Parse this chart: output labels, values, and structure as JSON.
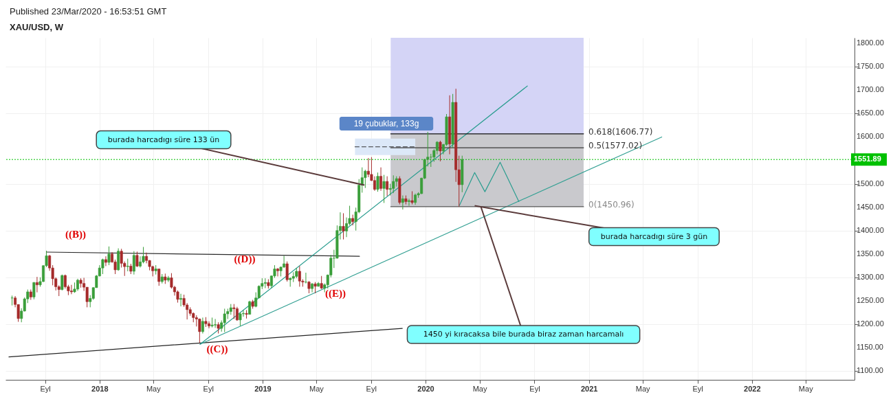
{
  "chart_data": {
    "type": "candlestick",
    "title": "XAU/USD, W",
    "subtitle": "Published 23/Mar/2020 - 16:53:51 GMT",
    "x": [
      "2017-06-19",
      "2017-06-26",
      "2017-07-03",
      "2017-07-10",
      "2017-07-17",
      "2017-07-24",
      "2017-07-31",
      "2017-08-07",
      "2017-08-14",
      "2017-08-21",
      "2017-08-28",
      "2017-09-04",
      "2017-09-11",
      "2017-09-18",
      "2017-09-25",
      "2017-10-02",
      "2017-10-09",
      "2017-10-16",
      "2017-10-23",
      "2017-10-30",
      "2017-11-06",
      "2017-11-13",
      "2017-11-20",
      "2017-11-27",
      "2017-12-04",
      "2017-12-11",
      "2017-12-18",
      "2017-12-25",
      "2018-01-01",
      "2018-01-08",
      "2018-01-15",
      "2018-01-22",
      "2018-01-29",
      "2018-02-05",
      "2018-02-12",
      "2018-02-19",
      "2018-02-26",
      "2018-03-05",
      "2018-03-12",
      "2018-03-19",
      "2018-03-26",
      "2018-04-02",
      "2018-04-09",
      "2018-04-16",
      "2018-04-23",
      "2018-04-30",
      "2018-05-07",
      "2018-05-14",
      "2018-05-21",
      "2018-05-28",
      "2018-06-04",
      "2018-06-11",
      "2018-06-18",
      "2018-06-25",
      "2018-07-02",
      "2018-07-09",
      "2018-07-16",
      "2018-07-23",
      "2018-07-30",
      "2018-08-06",
      "2018-08-13",
      "2018-08-20",
      "2018-08-27",
      "2018-09-03",
      "2018-09-10",
      "2018-09-17",
      "2018-09-24",
      "2018-10-01",
      "2018-10-08",
      "2018-10-15",
      "2018-10-22",
      "2018-10-29",
      "2018-11-05",
      "2018-11-12",
      "2018-11-19",
      "2018-11-26",
      "2018-12-03",
      "2018-12-10",
      "2018-12-17",
      "2018-12-24",
      "2018-12-31",
      "2019-01-07",
      "2019-01-14",
      "2019-01-21",
      "2019-01-28",
      "2019-02-04",
      "2019-02-11",
      "2019-02-18",
      "2019-02-25",
      "2019-03-04",
      "2019-03-11",
      "2019-03-18",
      "2019-03-25",
      "2019-04-01",
      "2019-04-08",
      "2019-04-15",
      "2019-04-22",
      "2019-04-29",
      "2019-05-06",
      "2019-05-13",
      "2019-05-20",
      "2019-05-27",
      "2019-06-03",
      "2019-06-10",
      "2019-06-17",
      "2019-06-24",
      "2019-07-01",
      "2019-07-08",
      "2019-07-15",
      "2019-07-22",
      "2019-07-29",
      "2019-08-05",
      "2019-08-12",
      "2019-08-19",
      "2019-08-26",
      "2019-09-02",
      "2019-09-09",
      "2019-09-16",
      "2019-09-23",
      "2019-09-30",
      "2019-10-07",
      "2019-10-14",
      "2019-10-21",
      "2019-10-28",
      "2019-11-04",
      "2019-11-11",
      "2019-11-18",
      "2019-11-25",
      "2019-12-02",
      "2019-12-09",
      "2019-12-16",
      "2019-12-23",
      "2019-12-30",
      "2020-01-06",
      "2020-01-13",
      "2020-01-20",
      "2020-01-27",
      "2020-02-03",
      "2020-02-10",
      "2020-02-17",
      "2020-02-24",
      "2020-03-02",
      "2020-03-09",
      "2020-03-16",
      "2020-03-23"
    ],
    "ohlc": [
      [
        1256,
        1261,
        1240,
        1256
      ],
      [
        1256,
        1260,
        1236,
        1242
      ],
      [
        1242,
        1242,
        1205,
        1212
      ],
      [
        1212,
        1234,
        1204,
        1228
      ],
      [
        1228,
        1257,
        1227,
        1254
      ],
      [
        1254,
        1274,
        1245,
        1269
      ],
      [
        1269,
        1274,
        1252,
        1258
      ],
      [
        1258,
        1290,
        1253,
        1289
      ],
      [
        1289,
        1301,
        1268,
        1284
      ],
      [
        1284,
        1300,
        1280,
        1291
      ],
      [
        1291,
        1326,
        1290,
        1325
      ],
      [
        1325,
        1357,
        1322,
        1346
      ],
      [
        1346,
        1348,
        1314,
        1320
      ],
      [
        1320,
        1326,
        1283,
        1297
      ],
      [
        1297,
        1300,
        1272,
        1280
      ],
      [
        1280,
        1283,
        1260,
        1274
      ],
      [
        1274,
        1306,
        1272,
        1304
      ],
      [
        1304,
        1306,
        1276,
        1280
      ],
      [
        1280,
        1284,
        1262,
        1271
      ],
      [
        1271,
        1284,
        1264,
        1269
      ],
      [
        1269,
        1289,
        1267,
        1275
      ],
      [
        1275,
        1297,
        1271,
        1294
      ],
      [
        1294,
        1298,
        1278,
        1287
      ],
      [
        1287,
        1299,
        1271,
        1279
      ],
      [
        1279,
        1279,
        1236,
        1248
      ],
      [
        1248,
        1262,
        1236,
        1255
      ],
      [
        1255,
        1279,
        1252,
        1278
      ],
      [
        1278,
        1305,
        1278,
        1303
      ],
      [
        1303,
        1326,
        1302,
        1320
      ],
      [
        1320,
        1340,
        1307,
        1338
      ],
      [
        1338,
        1345,
        1324,
        1332
      ],
      [
        1332,
        1366,
        1326,
        1350
      ],
      [
        1350,
        1354,
        1331,
        1333
      ],
      [
        1333,
        1338,
        1307,
        1316
      ],
      [
        1316,
        1362,
        1314,
        1356
      ],
      [
        1356,
        1361,
        1321,
        1330
      ],
      [
        1330,
        1334,
        1303,
        1323
      ],
      [
        1323,
        1340,
        1313,
        1324
      ],
      [
        1324,
        1329,
        1307,
        1313
      ],
      [
        1313,
        1356,
        1306,
        1347
      ],
      [
        1347,
        1355,
        1322,
        1324
      ],
      [
        1324,
        1345,
        1321,
        1333
      ],
      [
        1333,
        1365,
        1330,
        1345
      ],
      [
        1345,
        1353,
        1330,
        1336
      ],
      [
        1336,
        1337,
        1315,
        1323
      ],
      [
        1323,
        1325,
        1302,
        1314
      ],
      [
        1314,
        1326,
        1306,
        1318
      ],
      [
        1318,
        1318,
        1282,
        1291
      ],
      [
        1291,
        1307,
        1287,
        1301
      ],
      [
        1301,
        1308,
        1286,
        1294
      ],
      [
        1294,
        1303,
        1290,
        1299
      ],
      [
        1299,
        1309,
        1276,
        1279
      ],
      [
        1279,
        1282,
        1261,
        1269
      ],
      [
        1269,
        1272,
        1246,
        1253
      ],
      [
        1253,
        1265,
        1238,
        1255
      ],
      [
        1255,
        1263,
        1237,
        1241
      ],
      [
        1241,
        1245,
        1210,
        1231
      ],
      [
        1231,
        1236,
        1218,
        1223
      ],
      [
        1223,
        1225,
        1204,
        1214
      ],
      [
        1214,
        1219,
        1195,
        1211
      ],
      [
        1211,
        1212,
        1160,
        1184
      ],
      [
        1184,
        1214,
        1180,
        1206
      ],
      [
        1206,
        1215,
        1194,
        1201
      ],
      [
        1201,
        1206,
        1191,
        1196
      ],
      [
        1196,
        1214,
        1193,
        1198
      ],
      [
        1198,
        1211,
        1192,
        1199
      ],
      [
        1199,
        1204,
        1180,
        1191
      ],
      [
        1191,
        1208,
        1184,
        1203
      ],
      [
        1203,
        1233,
        1183,
        1222
      ],
      [
        1222,
        1233,
        1211,
        1227
      ],
      [
        1227,
        1243,
        1220,
        1235
      ],
      [
        1235,
        1243,
        1211,
        1233
      ],
      [
        1233,
        1237,
        1207,
        1209
      ],
      [
        1209,
        1225,
        1196,
        1222
      ],
      [
        1222,
        1230,
        1216,
        1223
      ],
      [
        1223,
        1230,
        1212,
        1221
      ],
      [
        1221,
        1250,
        1221,
        1248
      ],
      [
        1248,
        1252,
        1233,
        1238
      ],
      [
        1238,
        1268,
        1236,
        1256
      ],
      [
        1256,
        1283,
        1256,
        1281
      ],
      [
        1281,
        1298,
        1275,
        1287
      ],
      [
        1287,
        1298,
        1277,
        1289
      ],
      [
        1289,
        1296,
        1276,
        1282
      ],
      [
        1282,
        1304,
        1277,
        1303
      ],
      [
        1303,
        1326,
        1299,
        1318
      ],
      [
        1318,
        1320,
        1302,
        1314
      ],
      [
        1314,
        1323,
        1302,
        1322
      ],
      [
        1322,
        1346,
        1320,
        1329
      ],
      [
        1329,
        1334,
        1291,
        1295
      ],
      [
        1295,
        1300,
        1280,
        1298
      ],
      [
        1298,
        1311,
        1290,
        1302
      ],
      [
        1302,
        1320,
        1298,
        1313
      ],
      [
        1313,
        1324,
        1280,
        1292
      ],
      [
        1292,
        1296,
        1280,
        1290
      ],
      [
        1290,
        1310,
        1287,
        1290
      ],
      [
        1290,
        1292,
        1266,
        1276
      ],
      [
        1276,
        1288,
        1268,
        1286
      ],
      [
        1286,
        1290,
        1266,
        1281
      ],
      [
        1281,
        1290,
        1280,
        1287
      ],
      [
        1287,
        1303,
        1275,
        1277
      ],
      [
        1277,
        1287,
        1268,
        1284
      ],
      [
        1284,
        1306,
        1276,
        1305
      ],
      [
        1305,
        1348,
        1300,
        1341
      ],
      [
        1341,
        1359,
        1320,
        1341
      ],
      [
        1341,
        1411,
        1340,
        1400
      ],
      [
        1400,
        1439,
        1381,
        1409
      ],
      [
        1409,
        1437,
        1381,
        1399
      ],
      [
        1399,
        1428,
        1386,
        1415
      ],
      [
        1415,
        1453,
        1411,
        1426
      ],
      [
        1426,
        1434,
        1411,
        1419
      ],
      [
        1419,
        1449,
        1400,
        1440
      ],
      [
        1440,
        1510,
        1437,
        1497
      ],
      [
        1497,
        1535,
        1481,
        1513
      ],
      [
        1513,
        1530,
        1491,
        1527
      ],
      [
        1527,
        1555,
        1514,
        1520
      ],
      [
        1520,
        1557,
        1506,
        1507
      ],
      [
        1507,
        1516,
        1485,
        1488
      ],
      [
        1488,
        1524,
        1483,
        1516
      ],
      [
        1516,
        1535,
        1485,
        1490
      ],
      [
        1490,
        1519,
        1459,
        1505
      ],
      [
        1505,
        1516,
        1474,
        1488
      ],
      [
        1488,
        1500,
        1475,
        1490
      ],
      [
        1490,
        1518,
        1480,
        1505
      ],
      [
        1505,
        1516,
        1494,
        1511
      ],
      [
        1511,
        1516,
        1456,
        1460
      ],
      [
        1460,
        1475,
        1445,
        1468
      ],
      [
        1468,
        1475,
        1456,
        1462
      ],
      [
        1462,
        1468,
        1453,
        1464
      ],
      [
        1464,
        1484,
        1456,
        1460
      ],
      [
        1460,
        1479,
        1455,
        1476
      ],
      [
        1476,
        1482,
        1470,
        1479
      ],
      [
        1479,
        1513,
        1478,
        1512
      ],
      [
        1512,
        1553,
        1510,
        1552
      ],
      [
        1552,
        1611,
        1537,
        1557
      ],
      [
        1557,
        1564,
        1536,
        1557
      ],
      [
        1557,
        1574,
        1547,
        1571
      ],
      [
        1571,
        1591,
        1563,
        1589
      ],
      [
        1589,
        1592,
        1548,
        1570
      ],
      [
        1570,
        1585,
        1563,
        1584
      ],
      [
        1584,
        1649,
        1581,
        1643
      ],
      [
        1643,
        1689,
        1563,
        1585
      ],
      [
        1585,
        1692,
        1576,
        1674
      ],
      [
        1674,
        1703,
        1504,
        1530
      ],
      [
        1530,
        1560,
        1451,
        1498
      ],
      [
        1498,
        1560,
        1482,
        1551.89
      ]
    ],
    "colors": [
      "#3a9e3a",
      "#a52a2a",
      "#a52a2a",
      "#3a9e3a",
      "#3a9e3a",
      "#3a9e3a",
      "#a52a2a",
      "#3a9e3a",
      "#a52a2a",
      "#3a9e3a",
      "#3a9e3a",
      "#3a9e3a",
      "#a52a2a",
      "#a52a2a",
      "#a52a2a",
      "#a52a2a",
      "#3a9e3a",
      "#a52a2a",
      "#a52a2a",
      "#a52a2a",
      "#3a9e3a",
      "#3a9e3a",
      "#a52a2a",
      "#a52a2a",
      "#a52a2a",
      "#3a9e3a",
      "#3a9e3a",
      "#3a9e3a",
      "#3a9e3a",
      "#3a9e3a",
      "#a52a2a",
      "#3a9e3a",
      "#a52a2a",
      "#a52a2a",
      "#3a9e3a",
      "#a52a2a",
      "#a52a2a",
      "#3a9e3a",
      "#a52a2a",
      "#3a9e3a",
      "#a52a2a",
      "#3a9e3a",
      "#3a9e3a",
      "#a52a2a",
      "#a52a2a",
      "#a52a2a",
      "#3a9e3a",
      "#a52a2a",
      "#3a9e3a",
      "#a52a2a",
      "#3a9e3a",
      "#a52a2a",
      "#a52a2a",
      "#a52a2a",
      "#3a9e3a",
      "#a52a2a",
      "#a52a2a",
      "#a52a2a",
      "#a52a2a",
      "#a52a2a",
      "#a52a2a",
      "#3a9e3a",
      "#a52a2a",
      "#a52a2a",
      "#3a9e3a",
      "#3a9e3a",
      "#a52a2a",
      "#3a9e3a",
      "#3a9e3a",
      "#3a9e3a",
      "#3a9e3a",
      "#a52a2a",
      "#a52a2a",
      "#3a9e3a",
      "#3a9e3a",
      "#a52a2a",
      "#3a9e3a",
      "#a52a2a",
      "#3a9e3a",
      "#3a9e3a",
      "#3a9e3a",
      "#3a9e3a",
      "#a52a2a",
      "#3a9e3a",
      "#3a9e3a",
      "#a52a2a",
      "#3a9e3a",
      "#3a9e3a",
      "#a52a2a",
      "#3a9e3a",
      "#3a9e3a",
      "#3a9e3a",
      "#a52a2a",
      "#a52a2a",
      "#3a9e3a",
      "#a52a2a",
      "#3a9e3a",
      "#a52a2a",
      "#3a9e3a",
      "#a52a2a",
      "#3a9e3a",
      "#3a9e3a",
      "#3a9e3a",
      "#3a9e3a",
      "#3a9e3a",
      "#3a9e3a",
      "#a52a2a",
      "#3a9e3a",
      "#3a9e3a",
      "#a52a2a",
      "#3a9e3a",
      "#3a9e3a",
      "#3a9e3a",
      "#3a9e3a",
      "#a52a2a",
      "#a52a2a",
      "#a52a2a",
      "#3a9e3a",
      "#a52a2a",
      "#3a9e3a",
      "#a52a2a",
      "#3a9e3a",
      "#3a9e3a",
      "#3a9e3a",
      "#a52a2a",
      "#3a9e3a",
      "#a52a2a",
      "#3a9e3a",
      "#a52a2a",
      "#3a9e3a",
      "#3a9e3a",
      "#3a9e3a",
      "#3a9e3a",
      "#3a9e3a",
      "#3a9e3a",
      "#3a9e3a",
      "#3a9e3a",
      "#a52a2a",
      "#3a9e3a",
      "#3a9e3a",
      "#a52a2a",
      "#3a9e3a",
      "#a52a2a",
      "#a52a2a",
      "#3a9e3a"
    ],
    "series": [
      {
        "type": "line",
        "color": "#222222",
        "x": [
          "2017-06-12",
          "2019-11-10"
        ],
        "values": [
          1130,
          1191
        ]
      },
      {
        "type": "line",
        "color": "#2a2a2a",
        "x": [
          "2017-09-04",
          "2019-08-06"
        ],
        "values": [
          1354,
          1345
        ]
      },
      {
        "type": "line",
        "color": "#2a9d8f",
        "x": [
          "2018-08-14",
          "2020-08-16"
        ],
        "values": [
          1157,
          1709
        ]
      },
      {
        "type": "line",
        "color": "#33a093",
        "x": [
          "2018-08-14",
          "2021-06-13"
        ],
        "values": [
          1157,
          1600
        ]
      },
      {
        "type": "line",
        "color": "#2a9d8f",
        "x": [
          "2020-03-17",
          "2020-04-20",
          "2020-05-13",
          "2020-06-16",
          "2020-07-28"
        ],
        "values": [
          1454,
          1524,
          1483,
          1546,
          1462
        ]
      },
      {
        "type": "line",
        "color": "#111111",
        "x": [
          "2019-10-15",
          "2020-12-20"
        ],
        "values": [
          1606.77,
          1606.77
        ]
      },
      {
        "type": "line",
        "color": "#3a3a3a",
        "x": [
          "2019-10-15",
          "2020-12-20"
        ],
        "values": [
          1577.02,
          1577.02
        ]
      },
      {
        "type": "line",
        "color": "#555555",
        "x": [
          "2019-10-15",
          "2020-12-20"
        ],
        "values": [
          1450.96,
          1450.96
        ]
      },
      {
        "type": "line",
        "color": "#333333",
        "line_style": "dashed",
        "x": [
          "2019-07-27",
          "2019-12-09"
        ],
        "values": [
          1579,
          1579
        ]
      }
    ],
    "ref_lines": [
      {
        "axis": "y",
        "value": 1551.89,
        "label": "1551.89",
        "color": "#00c000",
        "line_style": "dotted"
      }
    ],
    "annotations": [
      "19 çubuklar, 133g",
      {
        "text": "burada harcadıgı süre 133 ün",
        "x": "2019-08-17",
        "y": 1497
      },
      {
        "text": "burada harcadıgı süre 3 gün",
        "x": "2020-04-20",
        "y": 1453
      },
      {
        "text": "1450 yi kıracaksa bile burada biraz zaman harcamalı",
        "x": "2020-05-04",
        "y": 1450.96
      },
      "((B))",
      "((C))",
      "((D))",
      "((E))",
      "0.618(1606.77)",
      "0.5(1577.02)",
      "0(1450.96)"
    ],
    "xlim": [
      "2017-06-12",
      "2022-08-11"
    ],
    "xticks": [
      {
        "value": "2017-09-01",
        "label": "Eyl"
      },
      {
        "value": "2018-01-01",
        "label": "2018"
      },
      {
        "value": "2018-05-01",
        "label": "May"
      },
      {
        "value": "2018-09-01",
        "label": "Eyl"
      },
      {
        "value": "2019-01-01",
        "label": "2019"
      },
      {
        "value": "2019-05-01",
        "label": "May"
      },
      {
        "value": "2019-09-01",
        "label": "Eyl"
      },
      {
        "value": "2020-01-01",
        "label": "2020"
      },
      {
        "value": "2020-05-01",
        "label": "May"
      },
      {
        "value": "2020-09-01",
        "label": "Eyl"
      },
      {
        "value": "2021-01-01",
        "label": "2021"
      },
      {
        "value": "2021-05-01",
        "label": "May"
      },
      {
        "value": "2021-09-01",
        "label": "Eyl"
      },
      {
        "value": "2022-01-01",
        "label": "2022"
      },
      {
        "value": "2022-05-01",
        "label": "May"
      }
    ],
    "ylim": [
      1081,
      1812
    ],
    "yticks": [
      {
        "value": 1100,
        "label": "1100.00"
      },
      {
        "value": 1150,
        "label": "1150.00"
      },
      {
        "value": 1200,
        "label": "1200.00"
      },
      {
        "value": 1250,
        "label": "1250.00"
      },
      {
        "value": 1300,
        "label": "1300.00"
      },
      {
        "value": 1350,
        "label": "1350.00"
      },
      {
        "value": 1400,
        "label": "1400.00"
      },
      {
        "value": 1450,
        "label": "1450.00"
      },
      {
        "value": 1500,
        "label": "1500.00"
      },
      {
        "value": 1600,
        "label": "1600.00"
      },
      {
        "value": 1650,
        "label": "1650.00"
      },
      {
        "value": 1700,
        "label": "1700.00"
      },
      {
        "value": 1750,
        "label": "1750.00"
      },
      {
        "value": 1800,
        "label": "1800.00"
      }
    ],
    "grid": true
  }
}
